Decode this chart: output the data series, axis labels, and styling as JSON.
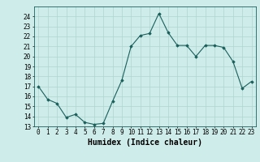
{
  "xlabel": "Humidex (Indice chaleur)",
  "x": [
    0,
    1,
    2,
    3,
    4,
    5,
    6,
    7,
    8,
    9,
    10,
    11,
    12,
    13,
    14,
    15,
    16,
    17,
    18,
    19,
    20,
    21,
    22,
    23
  ],
  "y": [
    17,
    15.7,
    15.3,
    13.9,
    14.2,
    13.4,
    13.2,
    13.3,
    15.5,
    17.6,
    21.0,
    22.1,
    22.3,
    24.3,
    22.4,
    21.1,
    21.1,
    20.0,
    21.1,
    21.1,
    20.9,
    19.5,
    16.8,
    17.5
  ],
  "ylim": [
    13,
    25
  ],
  "yticks": [
    13,
    14,
    15,
    16,
    17,
    18,
    19,
    20,
    21,
    22,
    23,
    24
  ],
  "line_color": "#1a5f5a",
  "marker": "D",
  "marker_size": 1.8,
  "bg_color": "#ceecea",
  "grid_color": "#aed4d0",
  "tick_label_fontsize": 5.5,
  "xlabel_fontsize": 7.0
}
